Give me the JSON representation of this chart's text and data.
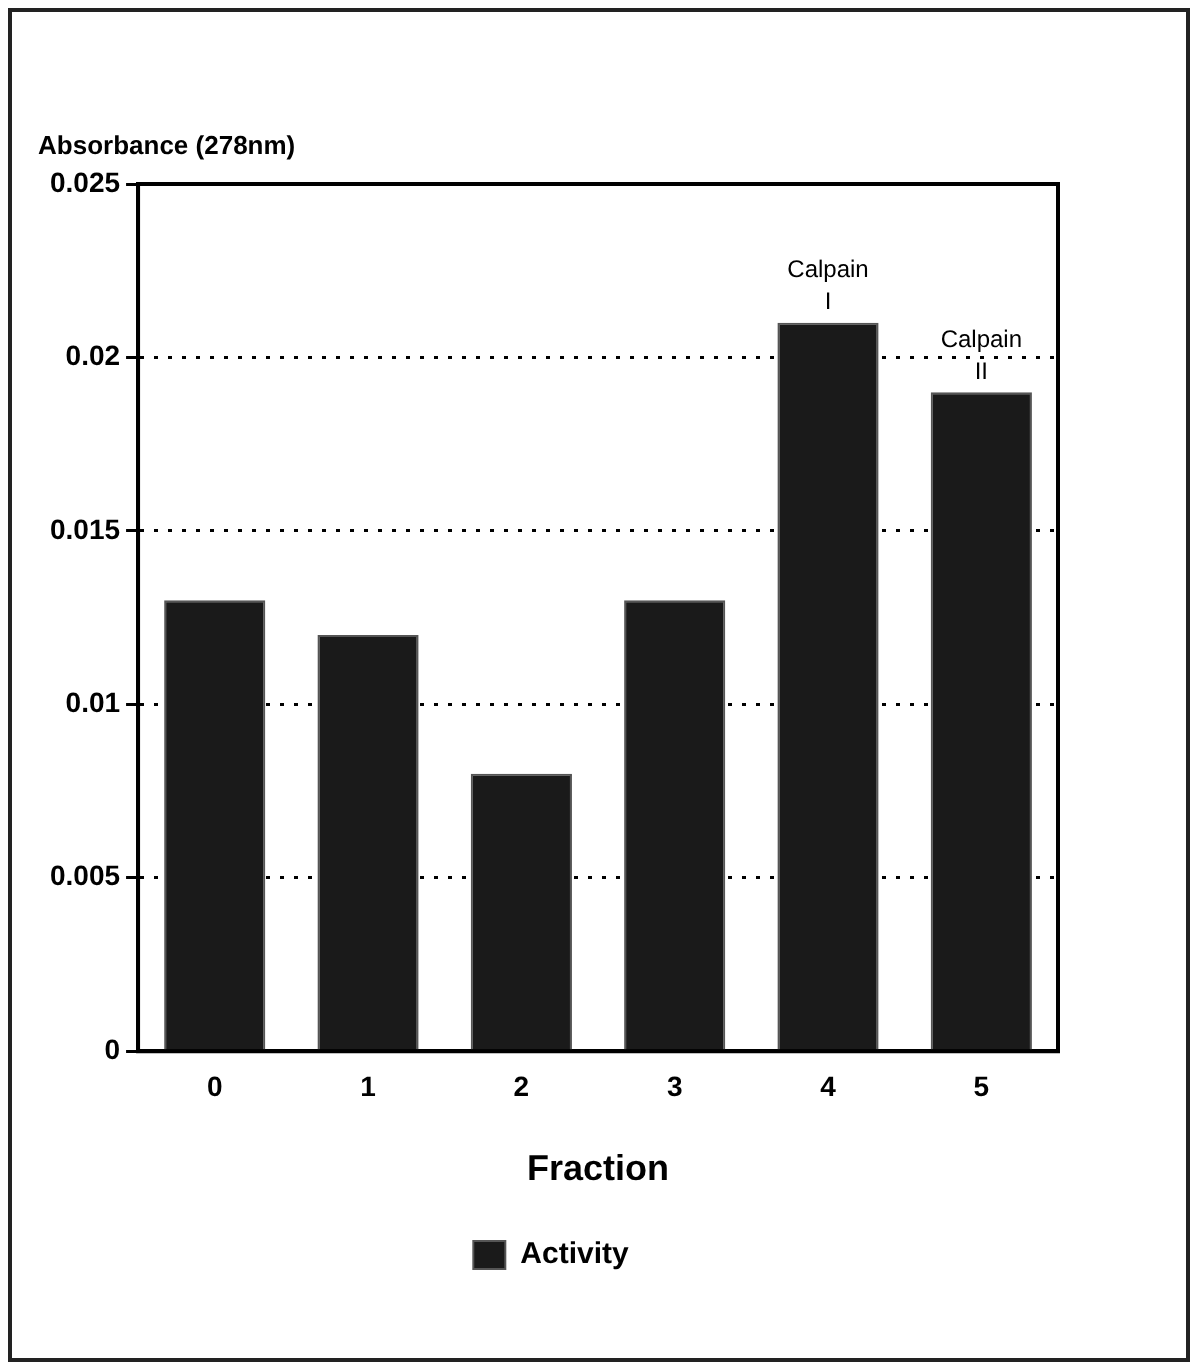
{
  "chart_data": {
    "type": "bar",
    "ylabel": "Absorbance (278nm)",
    "xlabel": "Fraction",
    "categories": [
      "0",
      "1",
      "2",
      "3",
      "4",
      "5"
    ],
    "series": [
      {
        "name": "Activity",
        "color": "#1a1a1a",
        "values": [
          0.013,
          0.012,
          0.008,
          0.013,
          0.021,
          0.019
        ]
      }
    ],
    "ylim": [
      0,
      0.025
    ],
    "yticks": [
      0,
      0.005,
      0.01,
      0.015,
      0.02,
      0.025
    ],
    "grid": "y",
    "legend": "bottom",
    "annotations": [
      {
        "text": "Calpain I",
        "x": "4",
        "y": 0.021
      },
      {
        "text": "Calpain II",
        "x": "5",
        "y": 0.019
      }
    ]
  }
}
